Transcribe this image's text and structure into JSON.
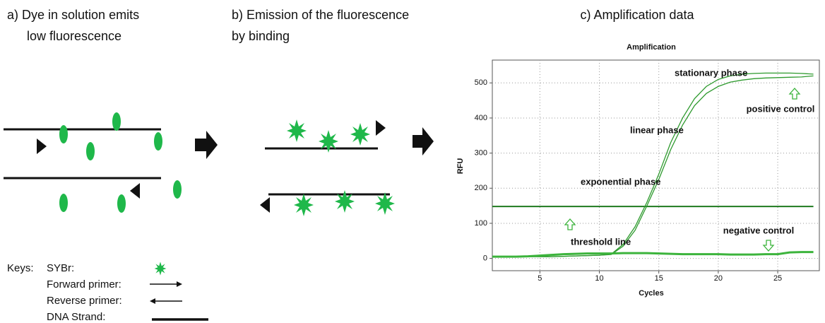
{
  "panel_a": {
    "title": [
      "a) Dye in solution emits",
      "low fluorescence"
    ]
  },
  "panel_b": {
    "title": [
      "b) Emission of the fluorescence",
      "by binding"
    ]
  },
  "panel_c": {
    "title": "c) Amplification data"
  },
  "keys": {
    "heading": "Keys:",
    "items": [
      "SYBr:",
      "Forward primer:",
      "Reverse primer:",
      "DNA Strand:"
    ]
  },
  "chart_data": {
    "type": "line",
    "title": "Amplification",
    "x_label": "Cycles",
    "y_label": "RFU",
    "x": [
      1,
      2,
      3,
      4,
      5,
      6,
      7,
      8,
      9,
      10,
      11,
      12,
      13,
      14,
      15,
      16,
      17,
      18,
      19,
      20,
      21,
      22,
      23,
      24,
      25,
      26,
      27,
      28
    ],
    "series": [
      {
        "color": "#2e9a2e",
        "values": [
          5,
          5,
          5,
          5,
          5,
          5,
          6,
          7,
          8,
          9,
          12,
          40,
          90,
          160,
          240,
          330,
          400,
          455,
          490,
          510,
          520,
          525,
          527,
          528,
          528,
          528,
          527,
          525
        ]
      },
      {
        "color": "#2e9a2e",
        "values": [
          5,
          5,
          5,
          5,
          5,
          5,
          6,
          7,
          8,
          9,
          11,
          35,
          80,
          150,
          225,
          310,
          380,
          435,
          470,
          490,
          502,
          508,
          512,
          514,
          515,
          516,
          517,
          520
        ]
      },
      {
        "color": "#3cb43c",
        "values": [
          5,
          5,
          5,
          6,
          8,
          10,
          12,
          13,
          14,
          14,
          14,
          15,
          15,
          15,
          14,
          13,
          12,
          12,
          12,
          12,
          11,
          11,
          11,
          12,
          12,
          17,
          18,
          18
        ]
      }
    ],
    "threshold": 148,
    "threshold_color": "#1f7a1f",
    "annotations": [
      "stationary phase",
      "linear phase",
      "exponential phase",
      "threshold line",
      "positive control",
      "negative control"
    ],
    "xlim": [
      1,
      28.5
    ],
    "ylim": [
      -35,
      565
    ],
    "xticks": [
      5,
      10,
      15,
      20,
      25
    ],
    "yticks": [
      0,
      100,
      200,
      300,
      400,
      500
    ],
    "grid": true
  }
}
